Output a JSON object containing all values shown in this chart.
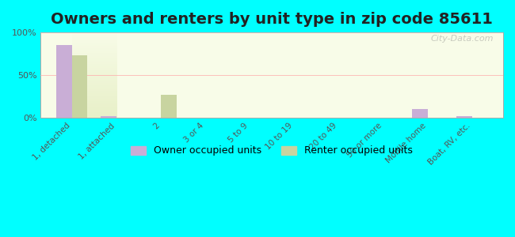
{
  "title": "Owners and renters by unit type in zip code 85611",
  "categories": [
    "1, detached",
    "1, attached",
    "2",
    "3 or 4",
    "5 to 9",
    "10 to 19",
    "20 to 49",
    "50 or more",
    "Mobile home",
    "Boat, RV, etc."
  ],
  "owner_values": [
    85,
    2,
    0,
    0,
    0,
    0,
    0,
    0,
    10,
    2
  ],
  "renter_values": [
    73,
    0,
    27,
    0,
    0,
    0,
    0,
    0,
    0,
    0
  ],
  "owner_color": "#c9aed6",
  "renter_color": "#c8d4a0",
  "background_color": "#00ffff",
  "plot_bg_gradient_top": "#e8f0c8",
  "plot_bg_gradient_bottom": "#f8fce8",
  "bar_width": 0.35,
  "ylim": [
    0,
    100
  ],
  "yticks": [
    0,
    50,
    100
  ],
  "ytick_labels": [
    "0%",
    "50%",
    "100%"
  ],
  "legend_owner": "Owner occupied units",
  "legend_renter": "Renter occupied units",
  "watermark": "City-Data.com",
  "title_fontsize": 14,
  "label_fontsize": 7.5,
  "tick_fontsize": 8
}
